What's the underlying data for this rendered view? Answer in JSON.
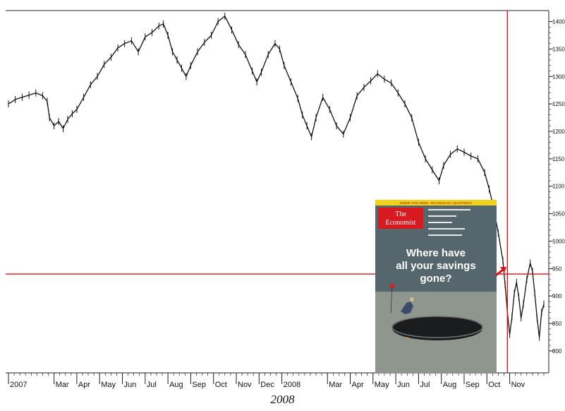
{
  "chart_data": {
    "type": "line",
    "title": "",
    "xlabel": "",
    "ylabel": "",
    "caption": "2008",
    "ylim": [
      760,
      1420
    ],
    "grid": false,
    "y_ticks": [
      800,
      850,
      900,
      950,
      1000,
      1050,
      1100,
      1150,
      1200,
      1250,
      1300,
      1350,
      1400
    ],
    "y_tick_labels": [
      "800",
      "850",
      "900",
      "950",
      "1000",
      "1050",
      "1100",
      "1150",
      "1200",
      "1250",
      "1300",
      "1350",
      "1400"
    ],
    "x_ticks": [
      {
        "label": "2007",
        "month_index": 0
      },
      {
        "label": "Mar",
        "month_index": 2
      },
      {
        "label": "Apr",
        "month_index": 3
      },
      {
        "label": "May",
        "month_index": 4
      },
      {
        "label": "Jun",
        "month_index": 5
      },
      {
        "label": "Jul",
        "month_index": 6
      },
      {
        "label": "Aug",
        "month_index": 7
      },
      {
        "label": "Sep",
        "month_index": 8
      },
      {
        "label": "Oct",
        "month_index": 9
      },
      {
        "label": "Nov",
        "month_index": 10
      },
      {
        "label": "Dec",
        "month_index": 11
      },
      {
        "label": "2008",
        "month_index": 12
      },
      {
        "label": "Mar",
        "month_index": 14
      },
      {
        "label": "Apr",
        "month_index": 15
      },
      {
        "label": "May",
        "month_index": 16
      },
      {
        "label": "Jun",
        "month_index": 17
      },
      {
        "label": "Jul",
        "month_index": 18
      },
      {
        "label": "Aug",
        "month_index": 19
      },
      {
        "label": "Sep",
        "month_index": 20
      },
      {
        "label": "Oct",
        "month_index": 21
      },
      {
        "label": "Nov",
        "month_index": 22
      }
    ],
    "series": [
      {
        "points": [
          [
            0.0,
            1250
          ],
          [
            0.3,
            1258
          ],
          [
            0.6,
            1262
          ],
          [
            0.9,
            1266
          ],
          [
            1.2,
            1270
          ],
          [
            1.5,
            1265
          ],
          [
            1.7,
            1255
          ],
          [
            1.8,
            1225
          ],
          [
            2.0,
            1210
          ],
          [
            2.2,
            1218
          ],
          [
            2.4,
            1205
          ],
          [
            2.6,
            1222
          ],
          [
            2.8,
            1232
          ],
          [
            3.0,
            1240
          ],
          [
            3.3,
            1262
          ],
          [
            3.6,
            1285
          ],
          [
            3.9,
            1300
          ],
          [
            4.2,
            1322
          ],
          [
            4.5,
            1335
          ],
          [
            4.8,
            1352
          ],
          [
            5.1,
            1360
          ],
          [
            5.4,
            1365
          ],
          [
            5.7,
            1345
          ],
          [
            6.0,
            1372
          ],
          [
            6.3,
            1380
          ],
          [
            6.6,
            1392
          ],
          [
            6.8,
            1396
          ],
          [
            7.0,
            1375
          ],
          [
            7.2,
            1345
          ],
          [
            7.4,
            1330
          ],
          [
            7.6,
            1315
          ],
          [
            7.8,
            1300
          ],
          [
            8.0,
            1320
          ],
          [
            8.3,
            1345
          ],
          [
            8.6,
            1362
          ],
          [
            8.9,
            1375
          ],
          [
            9.2,
            1400
          ],
          [
            9.5,
            1410
          ],
          [
            9.8,
            1385
          ],
          [
            10.1,
            1358
          ],
          [
            10.4,
            1340
          ],
          [
            10.7,
            1310
          ],
          [
            10.9,
            1290
          ],
          [
            11.1,
            1308
          ],
          [
            11.4,
            1340
          ],
          [
            11.7,
            1360
          ],
          [
            11.9,
            1350
          ],
          [
            12.1,
            1320
          ],
          [
            12.4,
            1290
          ],
          [
            12.7,
            1260
          ],
          [
            12.9,
            1230
          ],
          [
            13.1,
            1210
          ],
          [
            13.3,
            1190
          ],
          [
            13.5,
            1225
          ],
          [
            13.8,
            1262
          ],
          [
            14.1,
            1240
          ],
          [
            14.4,
            1210
          ],
          [
            14.7,
            1195
          ],
          [
            15.0,
            1225
          ],
          [
            15.3,
            1265
          ],
          [
            15.6,
            1280
          ],
          [
            15.9,
            1292
          ],
          [
            16.2,
            1305
          ],
          [
            16.5,
            1295
          ],
          [
            16.8,
            1288
          ],
          [
            17.1,
            1270
          ],
          [
            17.4,
            1250
          ],
          [
            17.7,
            1225
          ],
          [
            18.0,
            1180
          ],
          [
            18.3,
            1150
          ],
          [
            18.6,
            1130
          ],
          [
            18.9,
            1110
          ],
          [
            19.1,
            1138
          ],
          [
            19.4,
            1158
          ],
          [
            19.7,
            1168
          ],
          [
            20.0,
            1162
          ],
          [
            20.3,
            1155
          ],
          [
            20.6,
            1150
          ],
          [
            20.9,
            1125
          ],
          [
            21.1,
            1095
          ],
          [
            21.3,
            1060
          ],
          [
            21.5,
            1015
          ],
          [
            21.7,
            965
          ],
          [
            21.8,
            920
          ],
          [
            21.9,
            870
          ],
          [
            22.0,
            830
          ],
          [
            22.1,
            862
          ],
          [
            22.2,
            905
          ],
          [
            22.3,
            925
          ],
          [
            22.4,
            898
          ],
          [
            22.5,
            860
          ],
          [
            22.6,
            885
          ],
          [
            22.75,
            930
          ],
          [
            22.9,
            960
          ],
          [
            23.0,
            945
          ],
          [
            23.1,
            905
          ],
          [
            23.2,
            860
          ],
          [
            23.3,
            825
          ],
          [
            23.4,
            870
          ],
          [
            23.5,
            885
          ]
        ]
      }
    ],
    "reference_lines": [
      {
        "orientation": "horizontal",
        "y": 940,
        "color": "#e01010"
      },
      {
        "orientation": "vertical",
        "x": 21.9,
        "color": "#e01010"
      }
    ],
    "annotations": [
      {
        "type": "arrow",
        "color": "#e01010"
      }
    ]
  },
  "cover": {
    "banner": "INSIDE THIS WEEK: TECHNOLOGY QUARTERLY",
    "logo_line1": "The",
    "logo_line2": "Economist",
    "headline_line1": "Where have",
    "headline_line2": "all your savings",
    "headline_line3": "gone?",
    "colors": {
      "banner": "#f2d21a",
      "logo": "#d71920",
      "sky": "#55666c",
      "ground": "#8e968e",
      "text": "#ffffff"
    }
  }
}
